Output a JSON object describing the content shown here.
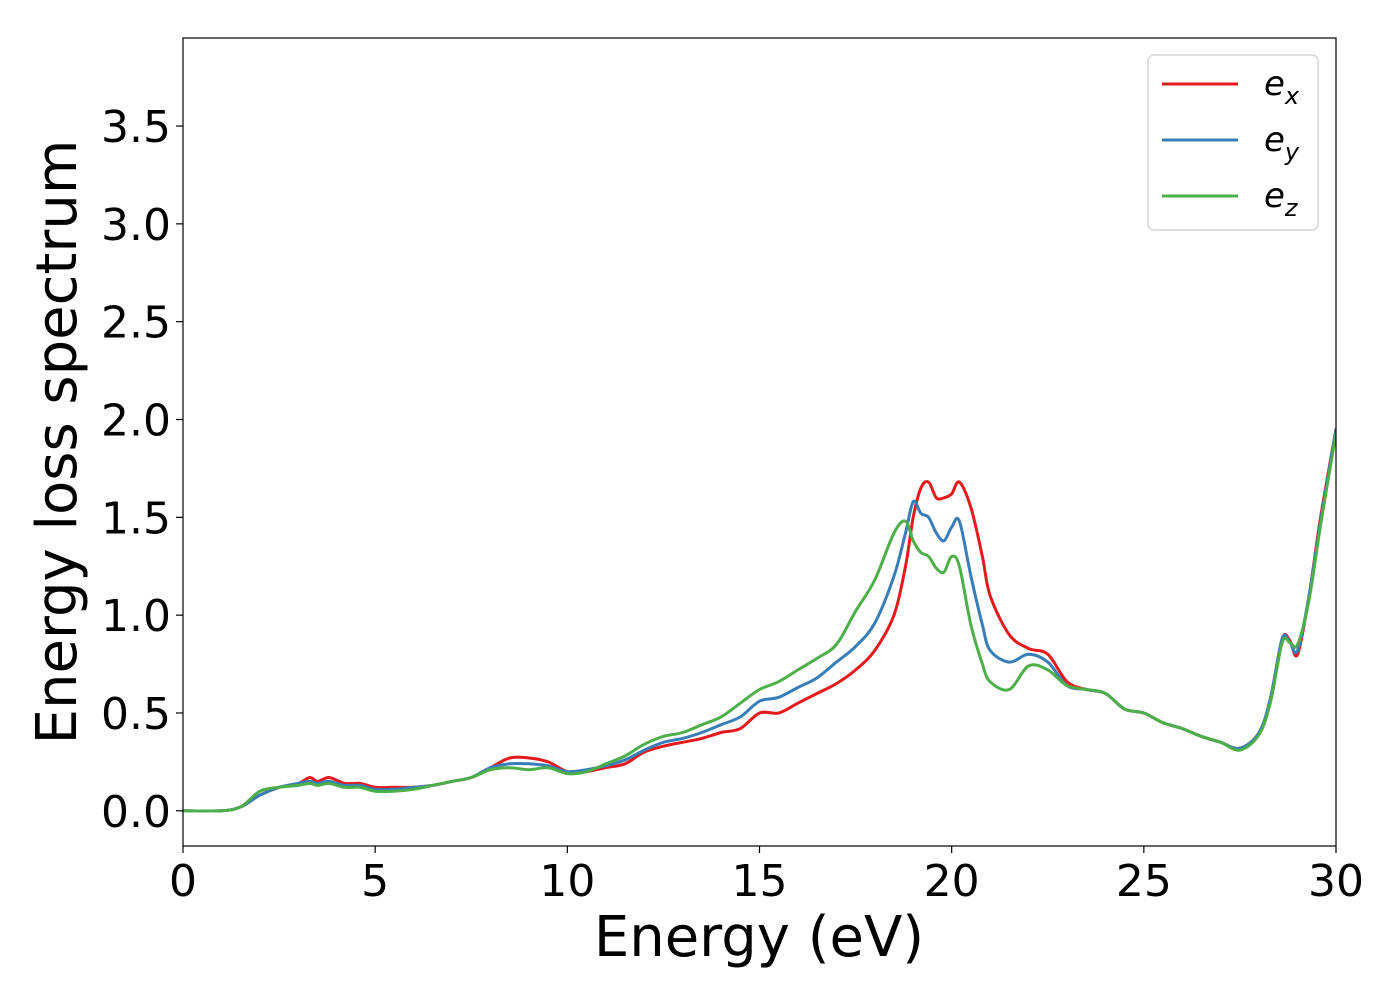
{
  "chart_data": {
    "type": "line",
    "xlabel": "Energy (eV)",
    "ylabel": "Energy loss spectrum",
    "xlim": [
      0,
      30
    ],
    "ylim": [
      -0.18,
      3.95
    ],
    "xticks": [
      "0",
      "5",
      "10",
      "15",
      "20",
      "25",
      "30"
    ],
    "yticks": [
      "0.0",
      "0.5",
      "1.0",
      "1.5",
      "2.0",
      "2.5",
      "3.0",
      "3.5"
    ],
    "grid": false,
    "legend_position": "top-right",
    "series": [
      {
        "name": "e_x",
        "legend": {
          "base": "e",
          "sub": "x"
        },
        "color": "#e41a1c",
        "x": [
          0,
          1,
          1.5,
          2,
          2.5,
          3,
          3.3,
          3.5,
          3.8,
          4.2,
          4.6,
          5,
          5.5,
          6,
          6.5,
          7,
          7.5,
          8,
          8.5,
          9,
          9.5,
          10,
          10.5,
          11,
          11.5,
          12,
          12.5,
          13,
          13.5,
          14,
          14.5,
          15,
          15.5,
          16,
          16.5,
          17,
          17.5,
          18,
          18.5,
          18.8,
          19,
          19.2,
          19.4,
          19.6,
          19.8,
          20,
          20.2,
          20.5,
          20.8,
          21,
          21.5,
          22,
          22.5,
          23,
          23.5,
          24,
          24.5,
          25,
          25.5,
          26,
          26.5,
          27,
          27.5,
          28,
          28.3,
          28.6,
          28.8,
          29,
          29.3,
          29.6,
          30
        ],
        "y": [
          0,
          0,
          0.02,
          0.08,
          0.12,
          0.14,
          0.17,
          0.15,
          0.17,
          0.14,
          0.14,
          0.12,
          0.12,
          0.12,
          0.13,
          0.15,
          0.17,
          0.22,
          0.27,
          0.27,
          0.25,
          0.2,
          0.2,
          0.22,
          0.24,
          0.3,
          0.33,
          0.35,
          0.37,
          0.4,
          0.42,
          0.5,
          0.5,
          0.55,
          0.6,
          0.65,
          0.72,
          0.82,
          1.0,
          1.25,
          1.5,
          1.65,
          1.68,
          1.6,
          1.6,
          1.62,
          1.68,
          1.55,
          1.3,
          1.1,
          0.9,
          0.83,
          0.8,
          0.66,
          0.62,
          0.6,
          0.52,
          0.5,
          0.45,
          0.42,
          0.38,
          0.35,
          0.32,
          0.4,
          0.58,
          0.88,
          0.87,
          0.8,
          1.1,
          1.5,
          1.95
        ]
      },
      {
        "name": "e_y",
        "legend": {
          "base": "e",
          "sub": "y"
        },
        "color": "#377eb8",
        "x": [
          0,
          1,
          1.5,
          2,
          2.5,
          3,
          3.3,
          3.5,
          3.8,
          4.2,
          4.6,
          5,
          5.5,
          6,
          6.5,
          7,
          7.5,
          8,
          8.5,
          9,
          9.5,
          10,
          10.5,
          11,
          11.5,
          12,
          12.5,
          13,
          13.5,
          14,
          14.5,
          15,
          15.5,
          16,
          16.5,
          17,
          17.5,
          18,
          18.5,
          18.8,
          19,
          19.2,
          19.4,
          19.6,
          19.8,
          20,
          20.2,
          20.5,
          20.8,
          21,
          21.5,
          22,
          22.5,
          23,
          23.5,
          24,
          24.5,
          25,
          25.5,
          26,
          26.5,
          27,
          27.5,
          28,
          28.3,
          28.6,
          28.8,
          29,
          29.3,
          29.6,
          30
        ],
        "y": [
          0,
          0,
          0.02,
          0.08,
          0.12,
          0.14,
          0.15,
          0.14,
          0.15,
          0.13,
          0.13,
          0.11,
          0.11,
          0.12,
          0.13,
          0.15,
          0.17,
          0.22,
          0.24,
          0.24,
          0.23,
          0.2,
          0.21,
          0.23,
          0.26,
          0.31,
          0.35,
          0.37,
          0.4,
          0.44,
          0.48,
          0.56,
          0.58,
          0.63,
          0.68,
          0.76,
          0.84,
          0.96,
          1.2,
          1.42,
          1.58,
          1.52,
          1.5,
          1.42,
          1.38,
          1.45,
          1.48,
          1.2,
          0.95,
          0.82,
          0.76,
          0.8,
          0.76,
          0.64,
          0.62,
          0.6,
          0.52,
          0.5,
          0.45,
          0.42,
          0.38,
          0.35,
          0.32,
          0.4,
          0.58,
          0.88,
          0.86,
          0.82,
          1.1,
          1.48,
          1.95
        ]
      },
      {
        "name": "e_z",
        "legend": {
          "base": "e",
          "sub": "z"
        },
        "color": "#4daf4a",
        "x": [
          0,
          1,
          1.5,
          2,
          2.5,
          3,
          3.3,
          3.5,
          3.8,
          4.2,
          4.6,
          5,
          5.5,
          6,
          6.5,
          7,
          7.5,
          8,
          8.5,
          9,
          9.5,
          10,
          10.5,
          11,
          11.5,
          12,
          12.5,
          13,
          13.5,
          14,
          14.5,
          15,
          15.5,
          16,
          16.5,
          17,
          17.5,
          18,
          18.5,
          18.8,
          19,
          19.2,
          19.4,
          19.6,
          19.8,
          20,
          20.2,
          20.5,
          20.8,
          21,
          21.5,
          22,
          22.5,
          23,
          23.5,
          24,
          24.5,
          25,
          25.5,
          26,
          26.5,
          27,
          27.5,
          28,
          28.3,
          28.6,
          28.8,
          29,
          29.3,
          29.6,
          30
        ],
        "y": [
          0,
          0,
          0.02,
          0.1,
          0.12,
          0.13,
          0.14,
          0.13,
          0.14,
          0.12,
          0.12,
          0.1,
          0.1,
          0.11,
          0.13,
          0.15,
          0.17,
          0.21,
          0.22,
          0.21,
          0.22,
          0.19,
          0.2,
          0.24,
          0.28,
          0.34,
          0.38,
          0.4,
          0.44,
          0.48,
          0.55,
          0.62,
          0.66,
          0.72,
          0.78,
          0.85,
          1.02,
          1.18,
          1.42,
          1.48,
          1.38,
          1.32,
          1.3,
          1.24,
          1.22,
          1.3,
          1.25,
          0.95,
          0.75,
          0.66,
          0.62,
          0.74,
          0.72,
          0.64,
          0.62,
          0.6,
          0.52,
          0.5,
          0.45,
          0.42,
          0.38,
          0.35,
          0.31,
          0.39,
          0.56,
          0.86,
          0.86,
          0.85,
          1.08,
          1.46,
          1.93
        ]
      }
    ]
  }
}
